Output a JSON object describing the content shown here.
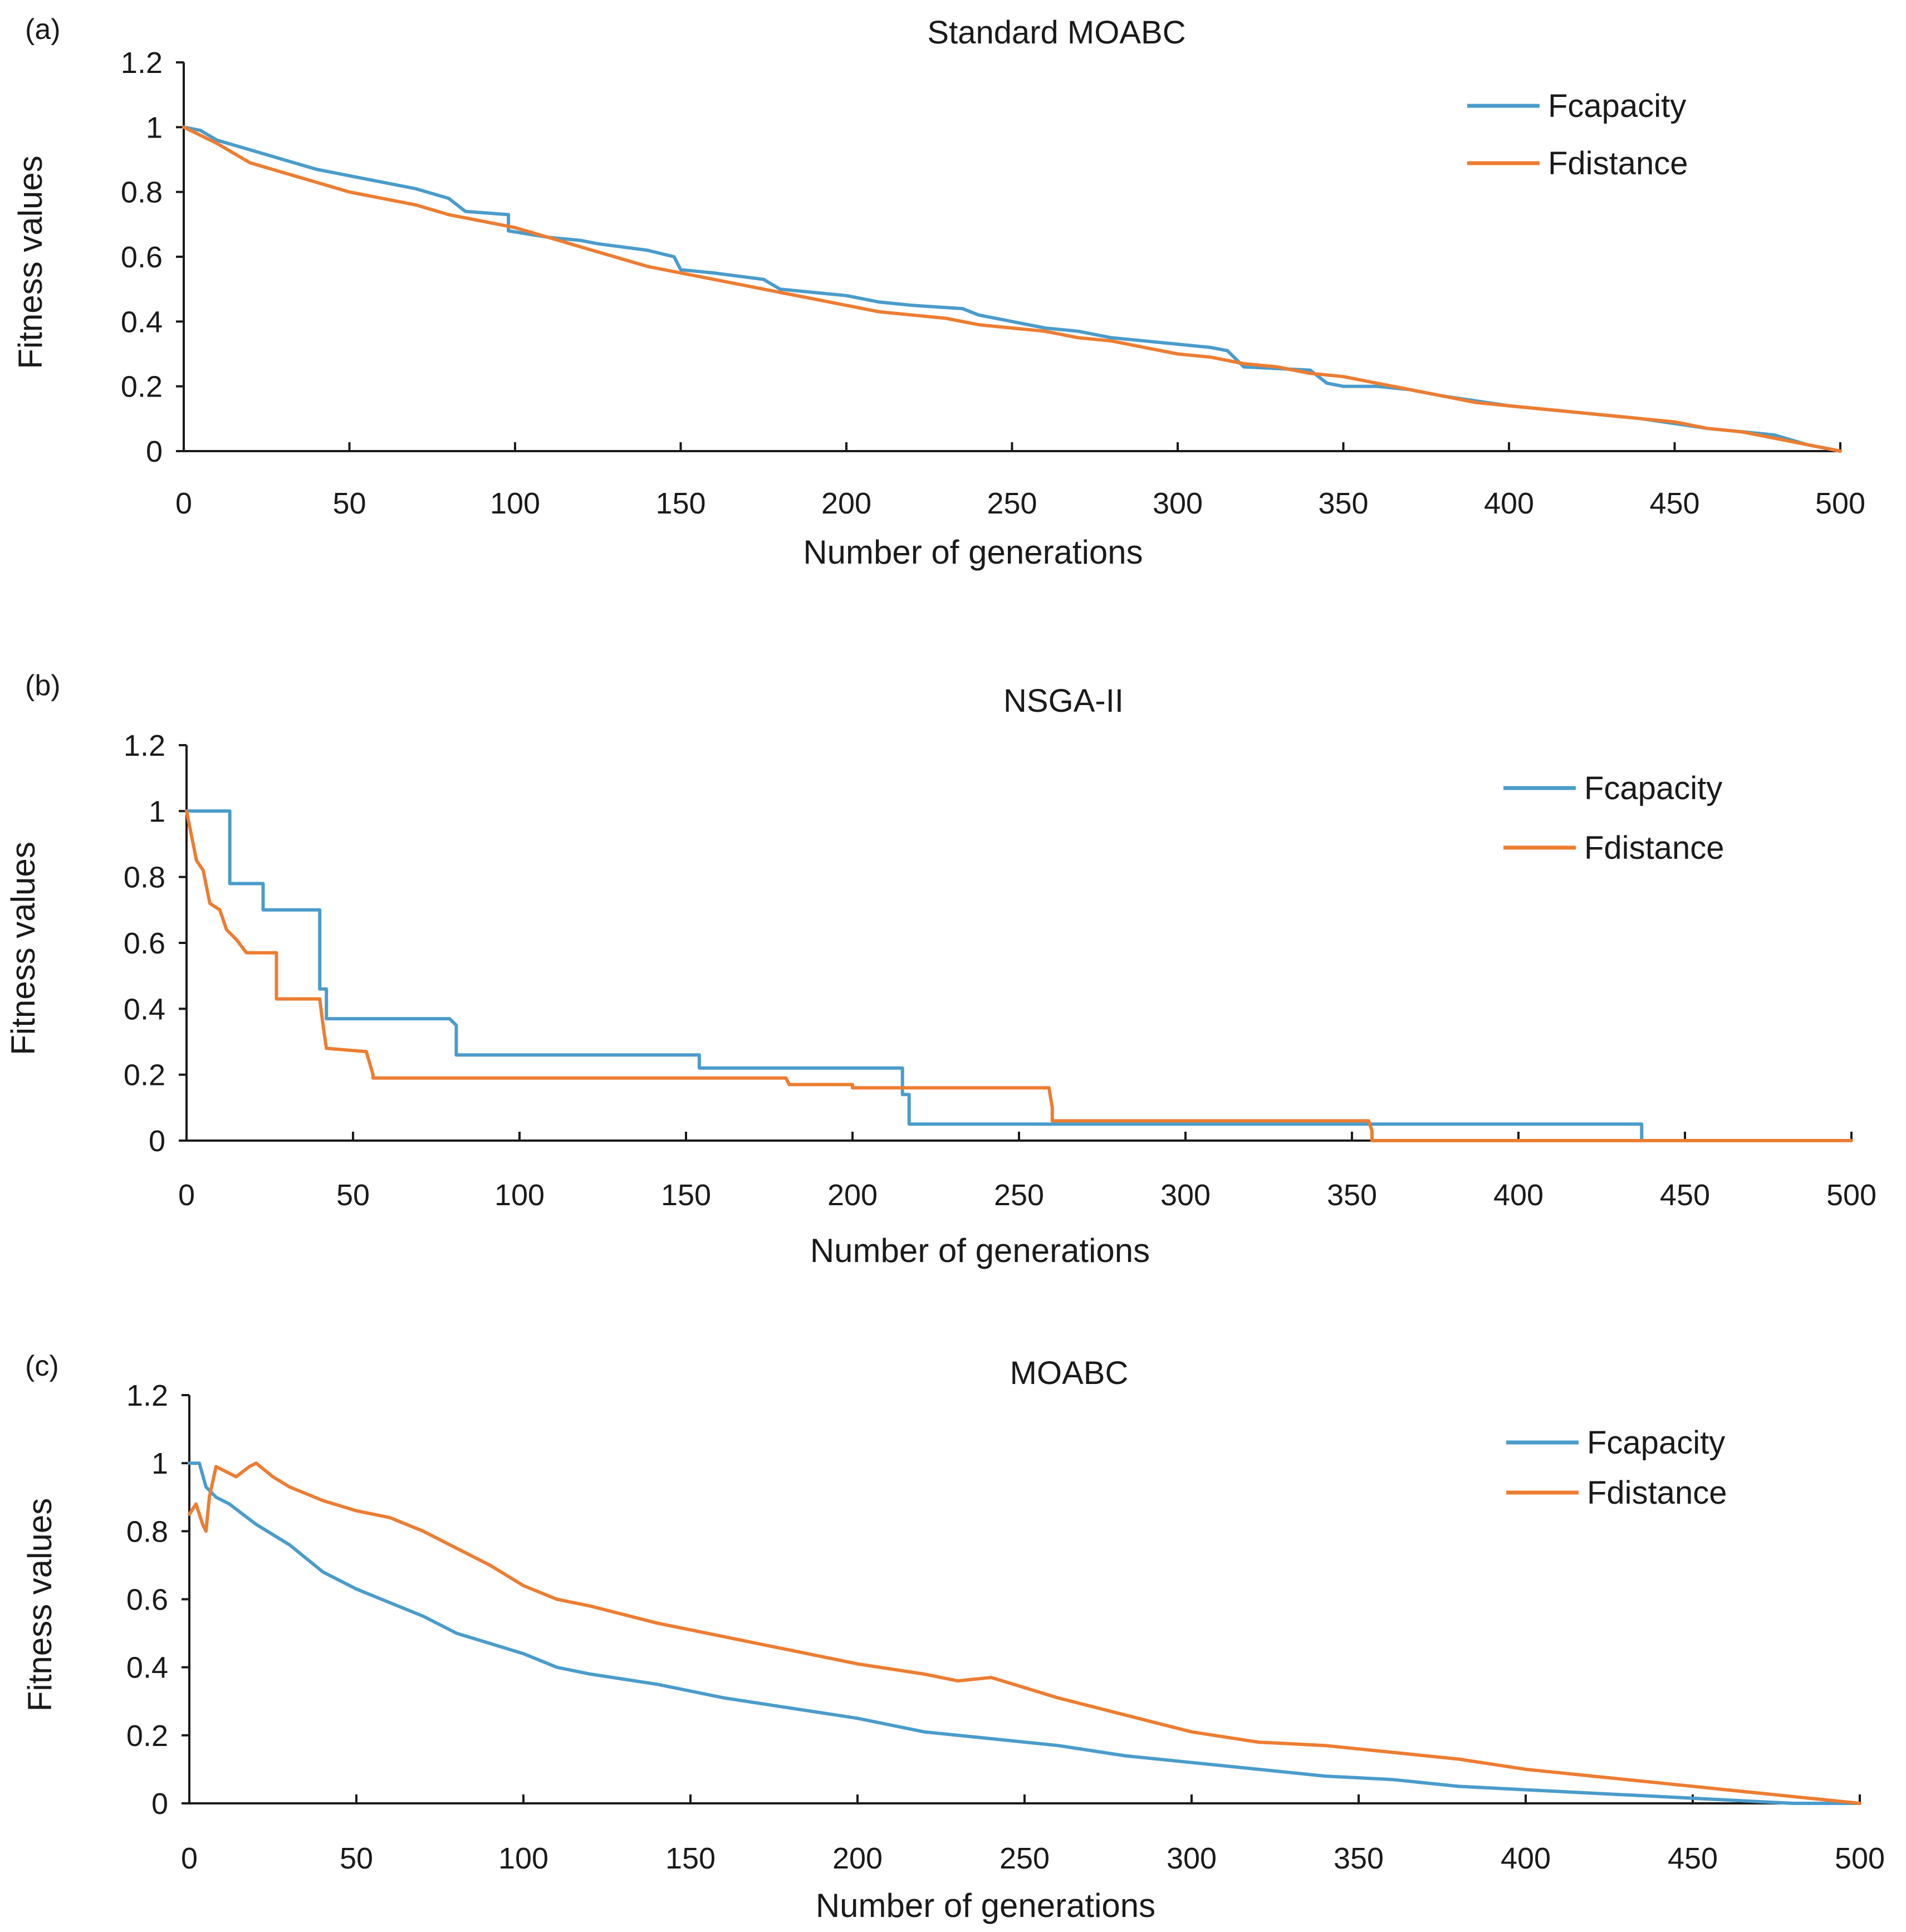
{
  "colors": {
    "fcapacity": "#4a9ccb",
    "fdistance": "#ed7d31"
  },
  "chart_data": [
    {
      "panel_label": "(a)",
      "type": "line",
      "title": "Standard MOABC",
      "xlabel": "Number of generations",
      "ylabel": "Fitness values",
      "xlim": [
        0,
        500
      ],
      "ylim": [
        0,
        1.2
      ],
      "xticks": [
        0,
        50,
        100,
        150,
        200,
        250,
        300,
        350,
        400,
        450,
        500
      ],
      "yticks": [
        0,
        0.2,
        0.4,
        0.6,
        0.8,
        1,
        1.2
      ],
      "xtick_labels": [
        "0",
        "50",
        "100",
        "150",
        "200",
        "250",
        "300",
        "350",
        "400",
        "450",
        "500"
      ],
      "ytick_labels": [
        "0",
        "0.2",
        "0.4",
        "0.6",
        "0.8",
        "1",
        "1.2"
      ],
      "legend_position": "top-right",
      "grid": false,
      "series": [
        {
          "name": "Fcapacity",
          "color": "#4a9ccb",
          "x": [
            0,
            5,
            10,
            20,
            30,
            40,
            50,
            60,
            70,
            80,
            85,
            98,
            98,
            110,
            120,
            125,
            140,
            148,
            150,
            160,
            175,
            180,
            190,
            200,
            210,
            220,
            235,
            240,
            250,
            260,
            270,
            280,
            290,
            300,
            310,
            315,
            320,
            340,
            345,
            350,
            360,
            370,
            380,
            400,
            420,
            440,
            460,
            480,
            490,
            500
          ],
          "values": [
            1.0,
            0.99,
            0.96,
            0.93,
            0.9,
            0.87,
            0.85,
            0.83,
            0.81,
            0.78,
            0.74,
            0.73,
            0.68,
            0.66,
            0.65,
            0.64,
            0.62,
            0.6,
            0.56,
            0.55,
            0.53,
            0.5,
            0.49,
            0.48,
            0.46,
            0.45,
            0.44,
            0.42,
            0.4,
            0.38,
            0.37,
            0.35,
            0.34,
            0.33,
            0.32,
            0.31,
            0.26,
            0.25,
            0.21,
            0.2,
            0.2,
            0.19,
            0.17,
            0.14,
            0.12,
            0.1,
            0.07,
            0.05,
            0.02,
            0.0
          ]
        },
        {
          "name": "Fdistance",
          "color": "#ed7d31",
          "x": [
            0,
            10,
            20,
            30,
            40,
            50,
            60,
            70,
            80,
            90,
            100,
            110,
            120,
            130,
            140,
            150,
            160,
            170,
            180,
            190,
            200,
            210,
            220,
            230,
            240,
            250,
            260,
            270,
            280,
            290,
            300,
            310,
            320,
            330,
            340,
            350,
            360,
            370,
            380,
            390,
            400,
            410,
            420,
            430,
            440,
            450,
            460,
            470,
            480,
            490,
            500
          ],
          "values": [
            1.0,
            0.95,
            0.89,
            0.86,
            0.83,
            0.8,
            0.78,
            0.76,
            0.73,
            0.71,
            0.69,
            0.66,
            0.63,
            0.6,
            0.57,
            0.55,
            0.53,
            0.51,
            0.49,
            0.47,
            0.45,
            0.43,
            0.42,
            0.41,
            0.39,
            0.38,
            0.37,
            0.35,
            0.34,
            0.32,
            0.3,
            0.29,
            0.27,
            0.26,
            0.24,
            0.23,
            0.21,
            0.19,
            0.17,
            0.15,
            0.14,
            0.13,
            0.12,
            0.11,
            0.1,
            0.09,
            0.07,
            0.06,
            0.04,
            0.02,
            0.0
          ]
        }
      ]
    },
    {
      "panel_label": "(b)",
      "type": "line",
      "title": "NSGA-II",
      "xlabel": "Number of generations",
      "ylabel": "Fitness values",
      "xlim": [
        0,
        500
      ],
      "ylim": [
        0,
        1.2
      ],
      "xticks": [
        0,
        50,
        100,
        150,
        200,
        250,
        300,
        350,
        400,
        450,
        500
      ],
      "yticks": [
        0,
        0.2,
        0.4,
        0.6,
        0.8,
        1,
        1.2
      ],
      "xtick_labels": [
        "0",
        "50",
        "100",
        "150",
        "200",
        "250",
        "300",
        "350",
        "400",
        "450",
        "500"
      ],
      "ytick_labels": [
        "0",
        "0.2",
        "0.4",
        "0.6",
        "0.8",
        "1",
        "1.2"
      ],
      "legend_position": "top-right",
      "grid": false,
      "series": [
        {
          "name": "Fcapacity",
          "color": "#4a9ccb",
          "x": [
            0,
            13,
            13,
            23,
            23,
            40,
            40,
            42,
            42,
            79,
            81,
            81,
            154,
            154,
            215,
            215,
            217,
            217,
            435,
            437,
            437,
            450
          ],
          "values": [
            1.0,
            1.0,
            0.78,
            0.78,
            0.7,
            0.7,
            0.46,
            0.46,
            0.37,
            0.37,
            0.35,
            0.26,
            0.26,
            0.22,
            0.22,
            0.14,
            0.14,
            0.05,
            0.05,
            0.05,
            0.0,
            0.0
          ]
        },
        {
          "name": "Fdistance",
          "color": "#ed7d31",
          "x": [
            0,
            3,
            5,
            7,
            10,
            12,
            15,
            18,
            20,
            27,
            27,
            30,
            40,
            41,
            42,
            42,
            54,
            56,
            56,
            180,
            181,
            200,
            200,
            259,
            260,
            260,
            355,
            356,
            356,
            500
          ],
          "values": [
            1.0,
            0.85,
            0.82,
            0.72,
            0.7,
            0.64,
            0.61,
            0.57,
            0.57,
            0.57,
            0.43,
            0.43,
            0.43,
            0.35,
            0.28,
            0.28,
            0.27,
            0.2,
            0.19,
            0.19,
            0.17,
            0.17,
            0.16,
            0.16,
            0.1,
            0.06,
            0.06,
            0.03,
            0.0,
            0.0
          ]
        }
      ]
    },
    {
      "panel_label": "(c)",
      "type": "line",
      "title": "MOABC",
      "xlabel": "Number of generations",
      "ylabel": "Fitness values",
      "xlim": [
        0,
        500
      ],
      "ylim": [
        0,
        1.2
      ],
      "xticks": [
        0,
        50,
        100,
        150,
        200,
        250,
        300,
        350,
        400,
        450,
        500
      ],
      "yticks": [
        0,
        0.2,
        0.4,
        0.6,
        0.8,
        1,
        1.2
      ],
      "xtick_labels": [
        "0",
        "50",
        "100",
        "150",
        "200",
        "250",
        "300",
        "350",
        "400",
        "450",
        "500"
      ],
      "ytick_labels": [
        "0",
        "0.2",
        "0.4",
        "0.6",
        "0.8",
        "1",
        "1.2"
      ],
      "legend_position": "top-right",
      "grid": false,
      "series": [
        {
          "name": "Fcapacity",
          "color": "#4a9ccb",
          "x": [
            0,
            3,
            5,
            8,
            12,
            20,
            30,
            40,
            50,
            60,
            70,
            80,
            90,
            100,
            110,
            120,
            140,
            160,
            180,
            200,
            220,
            240,
            260,
            280,
            300,
            320,
            340,
            360,
            380,
            400,
            420,
            440,
            460,
            480,
            490,
            500
          ],
          "values": [
            1.0,
            1.0,
            0.93,
            0.9,
            0.88,
            0.82,
            0.76,
            0.68,
            0.63,
            0.59,
            0.55,
            0.5,
            0.47,
            0.44,
            0.4,
            0.38,
            0.35,
            0.31,
            0.28,
            0.25,
            0.21,
            0.19,
            0.17,
            0.14,
            0.12,
            0.1,
            0.08,
            0.07,
            0.05,
            0.04,
            0.03,
            0.02,
            0.01,
            0.0,
            0.0,
            0.0
          ]
        },
        {
          "name": "Fdistance",
          "color": "#ed7d31",
          "x": [
            0,
            2,
            4,
            5,
            6,
            8,
            10,
            14,
            18,
            20,
            25,
            30,
            40,
            50,
            60,
            70,
            80,
            90,
            100,
            110,
            120,
            140,
            160,
            180,
            200,
            220,
            230,
            240,
            250,
            260,
            280,
            300,
            320,
            340,
            350,
            360,
            380,
            400,
            420,
            440,
            460,
            480,
            490,
            500
          ],
          "values": [
            0.85,
            0.88,
            0.82,
            0.8,
            0.9,
            0.99,
            0.98,
            0.96,
            0.99,
            1.0,
            0.96,
            0.93,
            0.89,
            0.86,
            0.84,
            0.8,
            0.75,
            0.7,
            0.64,
            0.6,
            0.58,
            0.53,
            0.49,
            0.45,
            0.41,
            0.38,
            0.36,
            0.37,
            0.34,
            0.31,
            0.26,
            0.21,
            0.18,
            0.17,
            0.16,
            0.15,
            0.13,
            0.1,
            0.08,
            0.06,
            0.04,
            0.02,
            0.01,
            0.0
          ]
        }
      ]
    }
  ]
}
